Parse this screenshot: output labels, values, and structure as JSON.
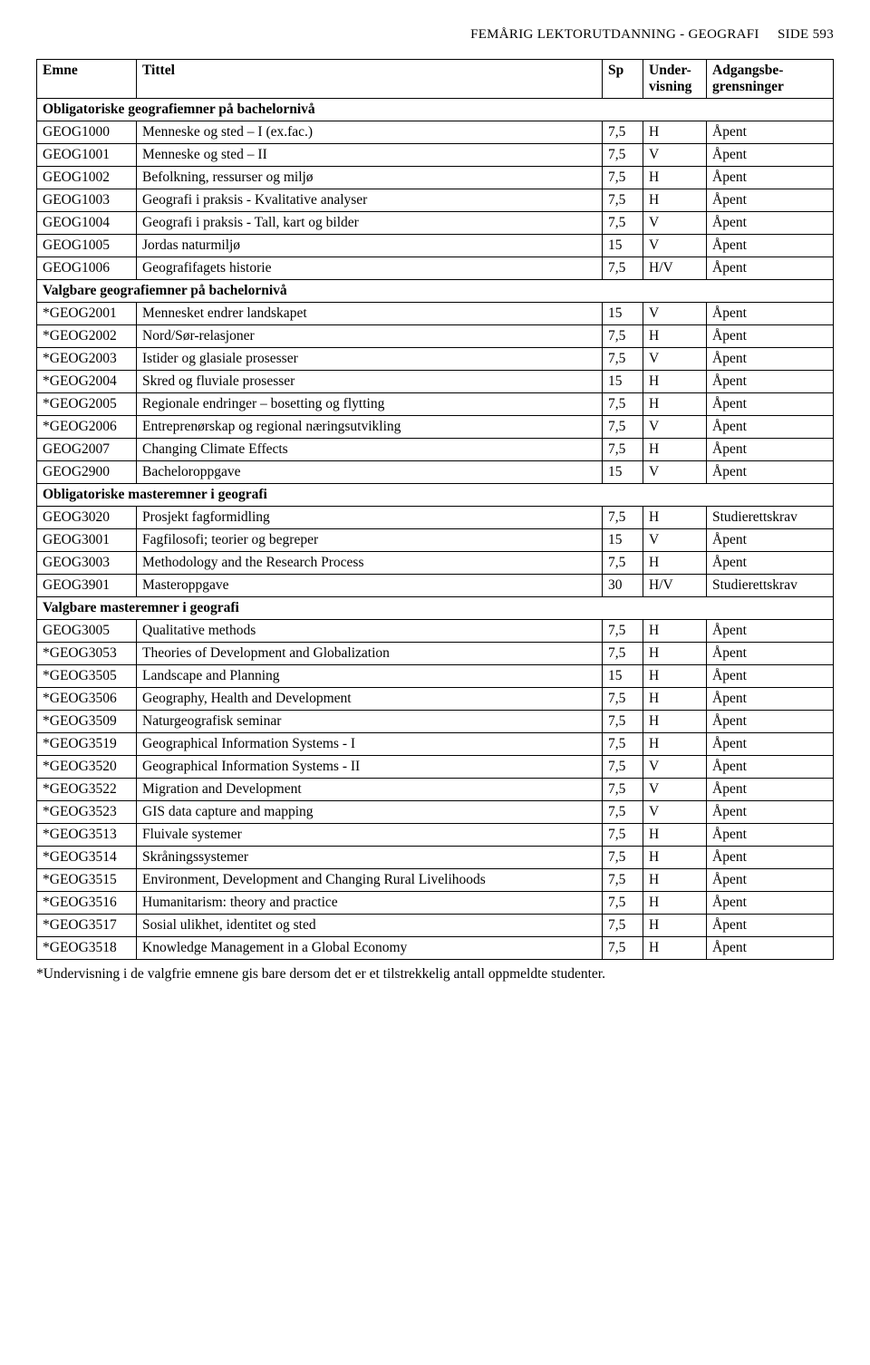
{
  "header": {
    "title": "FEMÅRIG LEKTORUTDANNING - GEOGRAFI",
    "page_label": "SIDE",
    "page_num": "593"
  },
  "columns": {
    "emne": "Emne",
    "tittel": "Tittel",
    "sp": "Sp",
    "uv_line1": "Under-",
    "uv_line2": "visning",
    "ab_line1": "Adgangsbe-",
    "ab_line2": "grensninger"
  },
  "sections": [
    {
      "heading": "Obligatoriske geografiemner på bachelornivå",
      "rows": [
        {
          "emne": "GEOG1000",
          "tittel": "Menneske og sted – I (ex.fac.)",
          "sp": "7,5",
          "uv": "H",
          "ab": "Åpent"
        },
        {
          "emne": "GEOG1001",
          "tittel": "Menneske og sted – II",
          "sp": "7,5",
          "uv": "V",
          "ab": "Åpent"
        },
        {
          "emne": "GEOG1002",
          "tittel": "Befolkning, ressurser og miljø",
          "sp": "7,5",
          "uv": "H",
          "ab": "Åpent"
        },
        {
          "emne": "GEOG1003",
          "tittel": "Geografi i praksis - Kvalitative analyser",
          "sp": "7,5",
          "uv": "H",
          "ab": "Åpent"
        },
        {
          "emne": "GEOG1004",
          "tittel": "Geografi i praksis - Tall, kart og bilder",
          "sp": "7,5",
          "uv": "V",
          "ab": "Åpent"
        },
        {
          "emne": "GEOG1005",
          "tittel": "Jordas naturmiljø",
          "sp": "15",
          "uv": "V",
          "ab": "Åpent"
        },
        {
          "emne": "GEOG1006",
          "tittel": "Geografifagets historie",
          "sp": "7,5",
          "uv": "H/V",
          "ab": "Åpent"
        }
      ]
    },
    {
      "heading": "Valgbare geografiemner på bachelornivå",
      "rows": [
        {
          "emne": "*GEOG2001",
          "tittel": "Mennesket endrer landskapet",
          "sp": "15",
          "uv": "V",
          "ab": "Åpent"
        },
        {
          "emne": "*GEOG2002",
          "tittel": "Nord/Sør-relasjoner",
          "sp": "7,5",
          "uv": "H",
          "ab": "Åpent"
        },
        {
          "emne": "*GEOG2003",
          "tittel": "Istider og glasiale prosesser",
          "sp": "7,5",
          "uv": "V",
          "ab": "Åpent"
        },
        {
          "emne": "*GEOG2004",
          "tittel": "Skred og fluviale prosesser",
          "sp": "15",
          "uv": "H",
          "ab": "Åpent"
        },
        {
          "emne": "*GEOG2005",
          "tittel": "Regionale endringer – bosetting og flytting",
          "sp": "7,5",
          "uv": "H",
          "ab": "Åpent"
        },
        {
          "emne": "*GEOG2006",
          "tittel": "Entreprenørskap og regional næringsutvikling",
          "sp": "7,5",
          "uv": "V",
          "ab": "Åpent"
        },
        {
          "emne": "GEOG2007",
          "tittel": "Changing Climate Effects",
          "sp": "7,5",
          "uv": "H",
          "ab": "Åpent"
        },
        {
          "emne": "GEOG2900",
          "tittel": "Bacheloroppgave",
          "sp": "15",
          "uv": "V",
          "ab": "Åpent"
        }
      ]
    },
    {
      "heading": "Obligatoriske masteremner i geografi",
      "rows": [
        {
          "emne": "GEOG3020",
          "tittel": "Prosjekt fagformidling",
          "sp": "7,5",
          "uv": "H",
          "ab": "Studierettskrav"
        },
        {
          "emne": "GEOG3001",
          "tittel": "Fagfilosofi; teorier og begreper",
          "sp": "15",
          "uv": "V",
          "ab": "Åpent"
        },
        {
          "emne": "GEOG3003",
          "tittel": "Methodology and the Research Process",
          "sp": "7,5",
          "uv": "H",
          "ab": "Åpent"
        },
        {
          "emne": "GEOG3901",
          "tittel": "Masteroppgave",
          "sp": "30",
          "uv": "H/V",
          "ab": "Studierettskrav"
        }
      ]
    },
    {
      "heading": "Valgbare masteremner i geografi",
      "rows": [
        {
          "emne": "GEOG3005",
          "tittel": "Qualitative methods",
          "sp": "7,5",
          "uv": "H",
          "ab": "Åpent"
        },
        {
          "emne": "*GEOG3053",
          "tittel": "Theories of Development and Globalization",
          "sp": "7,5",
          "uv": "H",
          "ab": "Åpent"
        },
        {
          "emne": "*GEOG3505",
          "tittel": "Landscape and Planning",
          "sp": "15",
          "uv": "H",
          "ab": "Åpent"
        },
        {
          "emne": "*GEOG3506",
          "tittel": "Geography, Health and Development",
          "sp": "7,5",
          "uv": "H",
          "ab": "Åpent"
        },
        {
          "emne": "*GEOG3509",
          "tittel": "Naturgeografisk seminar",
          "sp": "7,5",
          "uv": "H",
          "ab": "Åpent"
        },
        {
          "emne": "*GEOG3519",
          "tittel": "Geographical Information Systems - I",
          "sp": "7,5",
          "uv": "H",
          "ab": "Åpent"
        },
        {
          "emne": "*GEOG3520",
          "tittel": "Geographical Information Systems - II",
          "sp": "7,5",
          "uv": "V",
          "ab": "Åpent"
        },
        {
          "emne": "*GEOG3522",
          "tittel": "Migration and Development",
          "sp": "7,5",
          "uv": "V",
          "ab": "Åpent"
        },
        {
          "emne": "*GEOG3523",
          "tittel": "GIS data capture and mapping",
          "sp": "7,5",
          "uv": "V",
          "ab": "Åpent"
        },
        {
          "emne": "*GEOG3513",
          "tittel": "Fluivale systemer",
          "sp": "7,5",
          "uv": "H",
          "ab": "Åpent"
        },
        {
          "emne": "*GEOG3514",
          "tittel": "Skråningssystemer",
          "sp": "7,5",
          "uv": "H",
          "ab": "Åpent"
        },
        {
          "emne": "*GEOG3515",
          "tittel": "Environment, Development and Changing Rural Livelihoods",
          "sp": "7,5",
          "uv": "H",
          "ab": "Åpent"
        },
        {
          "emne": "*GEOG3516",
          "tittel": "Humanitarism: theory and practice",
          "sp": "7,5",
          "uv": "H",
          "ab": "Åpent"
        },
        {
          "emne": "*GEOG3517",
          "tittel": "Sosial ulikhet, identitet og sted",
          "sp": "7,5",
          "uv": "H",
          "ab": "Åpent"
        },
        {
          "emne": "*GEOG3518",
          "tittel": "Knowledge Management in a Global Economy",
          "sp": "7,5",
          "uv": "H",
          "ab": "Åpent"
        }
      ]
    }
  ],
  "footnote": "*Undervisning i de valgfrie emnene gis bare dersom det er et tilstrekkelig antall oppmeldte studenter."
}
